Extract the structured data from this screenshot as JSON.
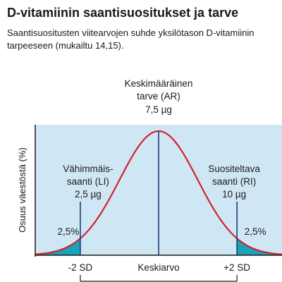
{
  "header": {
    "title": "D-vitamiinin saantisuositukset ja tarve",
    "subtitle": "Saantisuositusten viitearvojen suhde yksilötason D-vitamiinin tarpeeseen (mukailtu 14,15)."
  },
  "chart_data": {
    "type": "area",
    "ylabel": "Osuus väestöstä (%)",
    "xlabel": "",
    "x_ticks": [
      "-2 SD",
      "Keskiarvo",
      "+2 SD"
    ],
    "x_tick_values": [
      -2,
      0,
      2
    ],
    "xlim": [
      -3.15,
      3.15
    ],
    "distribution": "normal",
    "mean": 0,
    "sd": 1,
    "shaded_tails": [
      {
        "from": -3.15,
        "to": -2,
        "label": "2,5%"
      },
      {
        "from": 2,
        "to": 3.15,
        "label": "2,5%"
      }
    ],
    "markers": [
      {
        "x": -2,
        "lines": [
          "Vähimmäis-",
          "saanti (LI)",
          "2,5 µg"
        ]
      },
      {
        "x": 0,
        "lines": [
          "Keskimääräinen",
          "tarve (AR)",
          "7,5 µg"
        ]
      },
      {
        "x": 2,
        "lines": [
          "Suositeltava",
          "saanti (RI)",
          "10 µg"
        ]
      }
    ],
    "colors": {
      "background": "#cfe7f5",
      "curve": "#d2232a",
      "tail_fill": "#1aa3b6",
      "marker_line": "#1a3d7c"
    },
    "grid": false
  }
}
